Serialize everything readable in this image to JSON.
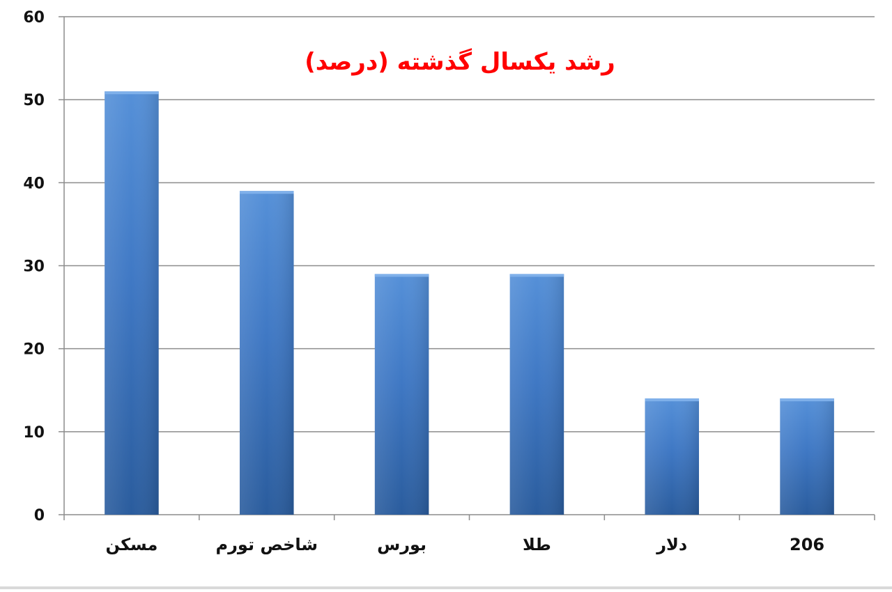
{
  "chart_data": {
    "type": "bar",
    "title": "رشد یکسال گذشته (درصد)",
    "categories": [
      "مسکن",
      "شاخص تورم",
      "بورس",
      "طلا",
      "دلار",
      "206"
    ],
    "values": [
      51,
      39,
      29,
      29,
      14,
      14
    ],
    "ylim": [
      0,
      60
    ],
    "yticks": [
      0,
      10,
      20,
      30,
      40,
      50,
      60
    ],
    "xlabel": "",
    "ylabel": "",
    "grid": true,
    "legend": "none",
    "colors": {
      "bar_top": "#5590d8",
      "bar_mid": "#3f78c4",
      "bar_bottom": "#2a5c9d",
      "title": "#ff0000",
      "grid": "#8c8c8c",
      "axis": "#8c8c8c",
      "text": "#111111"
    }
  }
}
